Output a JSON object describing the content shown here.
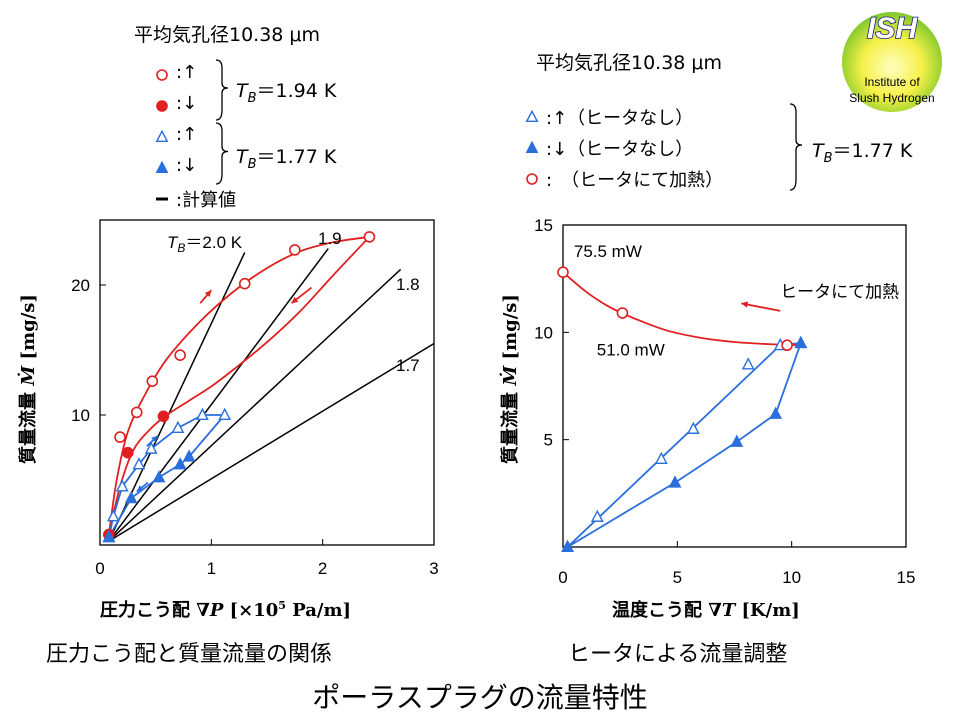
{
  "logo": {
    "abbr": "ISH",
    "line1": "Institute of",
    "line2": "Slush Hydrogen"
  },
  "page_title": "ポーラスプラグの流量特性",
  "left_panel": {
    "caption": "圧力こう配と質量流量の関係",
    "legend_title": "平均気孔径10.38 μm",
    "legend_items": [
      {
        "symbol": "open-circle",
        "color": "#e02020",
        "text": ":↑"
      },
      {
        "symbol": "filled-circle",
        "color": "#e02020",
        "text": ":↓"
      },
      {
        "symbol": "open-triangle",
        "color": "#2a6fdb",
        "text": ":↑"
      },
      {
        "symbol": "filled-triangle",
        "color": "#2a6fdb",
        "text": ":↓"
      },
      {
        "symbol": "line",
        "color": "#000000",
        "text": ":計算値"
      }
    ],
    "group_labels": [
      {
        "var": "T",
        "sub": "B",
        "value": "＝1.94 K"
      },
      {
        "var": "T",
        "sub": "B",
        "value": "＝1.77 K"
      }
    ]
  },
  "right_panel": {
    "caption": "ヒータによる流量調整",
    "legend_title": "平均気孔径10.38 μm",
    "legend_items": [
      {
        "symbol": "open-triangle",
        "color": "#2a6fdb",
        "text": ":↑（ヒータなし）"
      },
      {
        "symbol": "filled-triangle",
        "color": "#2a6fdb",
        "text": ":↓（ヒータなし）"
      },
      {
        "symbol": "open-circle",
        "color": "#e02020",
        "text": ":　（ヒータにて加熱）"
      }
    ],
    "group_label": {
      "var": "T",
      "sub": "B",
      "value": "＝1.77 K"
    }
  },
  "colors": {
    "red": "#e02020",
    "blue": "#2a6fdb",
    "black": "#000000"
  },
  "chart_data": [
    {
      "type": "scatter",
      "xlabel": "圧力こう配 ∇P [×10⁵ Pa/m]",
      "xlabel_parts": {
        "prefix": "圧力こう配 ∇",
        "var": "P",
        "unit_pre": " [×10",
        "sup": "5",
        "unit_post": " Pa/m]"
      },
      "ylabel": "質量流量 Ṁ [mg/s]",
      "ylabel_parts": {
        "prefix": "質量流量 ",
        "var": "Ṁ",
        "unit": " [mg/s]"
      },
      "xlim": [
        0,
        3
      ],
      "ylim": [
        0,
        25
      ],
      "x_ticks": [
        0,
        1,
        2,
        3
      ],
      "y_ticks": [
        10,
        20
      ],
      "x_tick_labels": [
        "0",
        "1",
        "2",
        "3"
      ],
      "y_tick_labels": [
        "10",
        "20"
      ],
      "calc_lines": [
        {
          "label_var": "T",
          "label_sub": "B",
          "label_value": "＝2.0 K",
          "x": [
            0.08,
            1.3
          ],
          "y": [
            0.3,
            22.5
          ]
        },
        {
          "label": "1.9",
          "x": [
            0.08,
            2.05
          ],
          "y": [
            0.3,
            22.8
          ]
        },
        {
          "label": "1.8",
          "x": [
            0.08,
            2.7
          ],
          "y": [
            0.3,
            21.2
          ]
        },
        {
          "label": "1.7",
          "x": [
            0.08,
            3.0
          ],
          "y": [
            0.3,
            15.5
          ]
        }
      ],
      "series": [
        {
          "name": "TB=1.94 K ↑",
          "marker": "open-circle",
          "color": "#e02020",
          "x": [
            0.08,
            0.18,
            0.33,
            0.47,
            0.72,
            1.3,
            1.75,
            2.42
          ],
          "y": [
            0.8,
            8.3,
            10.2,
            12.6,
            14.6,
            20.1,
            22.7,
            23.7
          ]
        },
        {
          "name": "TB=1.94 K ↓",
          "marker": "filled-circle",
          "color": "#e02020",
          "x": [
            0.08,
            0.25,
            0.57
          ],
          "y": [
            0.8,
            7.1,
            9.9
          ]
        },
        {
          "name": "TB=1.77 K ↑",
          "marker": "open-triangle",
          "color": "#2a6fdb",
          "x": [
            0.08,
            0.12,
            0.2,
            0.35,
            0.46,
            0.7,
            0.92,
            1.12
          ],
          "y": [
            0.6,
            2.2,
            4.5,
            6.2,
            7.4,
            9.0,
            10.0,
            10.0
          ]
        },
        {
          "name": "TB=1.77 K ↓",
          "marker": "filled-triangle",
          "color": "#2a6fdb",
          "x": [
            0.08,
            0.28,
            0.53,
            0.72,
            0.8
          ],
          "y": [
            0.6,
            3.6,
            5.2,
            6.2,
            6.8
          ]
        }
      ],
      "fit_curves": [
        {
          "color": "#e02020",
          "x": [
            0.08,
            0.15,
            0.25,
            0.4,
            0.6,
            0.9,
            1.2,
            1.5,
            1.8,
            2.1,
            2.42
          ],
          "y": [
            0.8,
            5.0,
            8.7,
            11.5,
            14.3,
            17.2,
            19.5,
            21.3,
            22.6,
            23.3,
            23.7
          ]
        },
        {
          "color": "#e02020",
          "x": [
            0.08,
            0.18,
            0.3,
            0.45,
            0.6,
            0.8,
            1.0,
            1.2,
            1.5,
            1.8,
            2.1,
            2.42
          ],
          "y": [
            0.8,
            4.5,
            7.3,
            8.9,
            10.0,
            11.1,
            12.2,
            13.5,
            15.6,
            18.0,
            20.8,
            23.7
          ]
        },
        {
          "color": "#2a6fdb",
          "x": [
            0.08,
            0.12,
            0.2,
            0.35,
            0.46,
            0.7,
            0.92,
            1.12
          ],
          "y": [
            0.6,
            2.2,
            4.5,
            6.2,
            7.4,
            9.0,
            10.0,
            10.0
          ]
        },
        {
          "color": "#2a6fdb",
          "x": [
            0.08,
            0.28,
            0.53,
            0.72,
            0.8,
            1.12
          ],
          "y": [
            0.6,
            3.6,
            5.2,
            6.2,
            6.8,
            10.0
          ]
        }
      ],
      "arrows": [
        {
          "color": "#e02020",
          "x": [
            0.9,
            1.0
          ],
          "y": [
            18.6,
            19.6
          ]
        },
        {
          "color": "#e02020",
          "x": [
            1.9,
            1.72
          ],
          "y": [
            19.8,
            18.6
          ]
        },
        {
          "color": "#2a6fdb",
          "x": [
            0.42,
            0.52
          ],
          "y": [
            7.6,
            8.4
          ]
        },
        {
          "color": "#2a6fdb",
          "x": [
            0.43,
            0.33
          ],
          "y": [
            4.8,
            4.1
          ]
        }
      ]
    },
    {
      "type": "scatter",
      "xlabel": "温度こう配 ∇T [K/m]",
      "xlabel_parts": {
        "prefix": "温度こう配 ∇",
        "var": "T",
        "unit": " [K/m]"
      },
      "ylabel": "質量流量 Ṁ [mg/s]",
      "ylabel_parts": {
        "prefix": "質量流量 ",
        "var": "Ṁ",
        "unit": " [mg/s]"
      },
      "xlim": [
        0,
        15
      ],
      "ylim": [
        0,
        15
      ],
      "x_ticks": [
        0,
        5,
        10,
        15
      ],
      "y_ticks": [
        5,
        10,
        15
      ],
      "x_tick_labels": [
        "0",
        "5",
        "10",
        "15"
      ],
      "y_tick_labels": [
        "5",
        "10",
        "15"
      ],
      "annotations": [
        {
          "text": "75.5 mW",
          "x": 1.7,
          "y": 13.8
        },
        {
          "text": "51.0 mW",
          "x": 2.7,
          "y": 9.2
        },
        {
          "text": "ヒータにて加熱",
          "x": 11.9,
          "y": 11.9
        }
      ],
      "series": [
        {
          "name": "↑（ヒータなし）",
          "marker": "open-triangle",
          "color": "#2a6fdb",
          "x": [
            0.2,
            1.5,
            4.3,
            5.7,
            8.1,
            9.5,
            10.4
          ],
          "y": [
            0.0,
            1.4,
            4.1,
            5.5,
            8.5,
            9.4,
            9.5
          ]
        },
        {
          "name": "↓（ヒータなし）",
          "marker": "filled-triangle",
          "color": "#2a6fdb",
          "x": [
            0.2,
            4.9,
            7.6,
            9.3,
            10.4
          ],
          "y": [
            0.0,
            3.0,
            4.9,
            6.2,
            9.5
          ]
        },
        {
          "name": "（ヒータにて加熱）",
          "marker": "open-circle",
          "color": "#e02020",
          "x": [
            0.0,
            2.6,
            9.8
          ],
          "y": [
            12.8,
            10.9,
            9.4
          ]
        }
      ],
      "fit_curves": [
        {
          "color": "#2a6fdb",
          "x": [
            0.2,
            9.5,
            10.4
          ],
          "y": [
            0.0,
            9.4,
            9.5
          ]
        },
        {
          "color": "#2a6fdb",
          "x": [
            0.2,
            4.9,
            7.6,
            9.3,
            10.4
          ],
          "y": [
            0.0,
            3.0,
            4.9,
            6.2,
            9.5
          ]
        },
        {
          "color": "#e02020",
          "x": [
            0.0,
            1.0,
            2.0,
            3.0,
            4.5,
            6.0,
            7.5,
            9.0,
            10.4
          ],
          "y": [
            12.8,
            11.9,
            11.2,
            10.7,
            10.1,
            9.75,
            9.55,
            9.45,
            9.4
          ]
        }
      ],
      "arrows": [
        {
          "color": "#e02020",
          "x": [
            9.5,
            7.8
          ],
          "y": [
            11.0,
            11.35
          ]
        }
      ]
    }
  ]
}
